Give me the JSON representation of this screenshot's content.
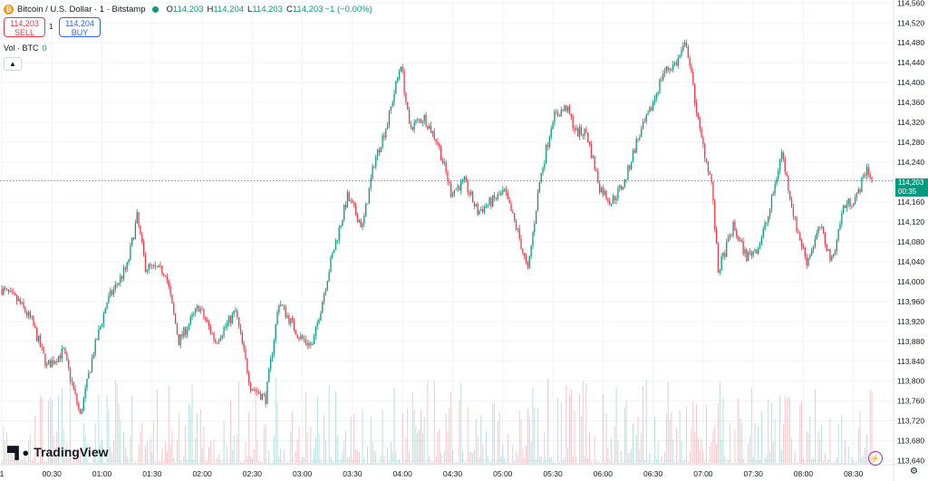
{
  "header": {
    "symbol": "Bitcoin / U.S. Dollar · 1 · Bitstamp",
    "coin_icon": "₿",
    "ohlc": {
      "o_label": "O",
      "o": "114,203",
      "h_label": "H",
      "h": "114,204",
      "l_label": "L",
      "l": "114,203",
      "c_label": "C",
      "c": "114,203",
      "change": "−1 (−0.00%)"
    }
  },
  "trade": {
    "sell_price": "114,203",
    "sell_label": "SELL",
    "spread": "1",
    "buy_price": "114,204",
    "buy_label": "BUY"
  },
  "volume_legend": {
    "label": "Vol · BTC",
    "value": "0"
  },
  "collapse_icon": "chevron-up-icon",
  "last_price": {
    "value": "114,203",
    "countdown": "00:35"
  },
  "branding": {
    "name": "TradingView"
  },
  "colors": {
    "up": "#089981",
    "down": "#f23645",
    "grid": "#f0f3fa"
  },
  "chart_data": {
    "type": "candlestick",
    "y_ticks": [
      "113,640",
      "113,680",
      "113,720",
      "113,760",
      "113,800",
      "113,840",
      "113,880",
      "113,920",
      "113,960",
      "114,000",
      "114,040",
      "114,080",
      "114,120",
      "114,160",
      "114,200",
      "114,240",
      "114,280",
      "114,320",
      "114,360",
      "114,400",
      "114,440",
      "114,480",
      "114,520",
      "114,560"
    ],
    "ylim": [
      113632,
      114566
    ],
    "x_ticks": [
      "1",
      "00:30",
      "01:00",
      "01:30",
      "02:00",
      "02:30",
      "03:00",
      "03:30",
      "04:00",
      "04:30",
      "05:00",
      "05:30",
      "06:00",
      "06:30",
      "07:00",
      "07:30",
      "08:00",
      "08:30"
    ],
    "x_tick_minutes": [
      0,
      30,
      60,
      90,
      120,
      150,
      180,
      210,
      240,
      270,
      300,
      330,
      360,
      390,
      420,
      450,
      480,
      510
    ],
    "minute_range": [
      0,
      521
    ],
    "anchors": [
      [
        0,
        113985
      ],
      [
        10,
        113960
      ],
      [
        18,
        113920
      ],
      [
        27,
        113830
      ],
      [
        37,
        113860
      ],
      [
        47,
        113730
      ],
      [
        55,
        113860
      ],
      [
        63,
        113960
      ],
      [
        75,
        114030
      ],
      [
        81,
        114130
      ],
      [
        86,
        114030
      ],
      [
        98,
        114020
      ],
      [
        106,
        113880
      ],
      [
        118,
        113950
      ],
      [
        128,
        113880
      ],
      [
        140,
        113940
      ],
      [
        149,
        113790
      ],
      [
        158,
        113765
      ],
      [
        166,
        113960
      ],
      [
        178,
        113890
      ],
      [
        186,
        113870
      ],
      [
        197,
        114040
      ],
      [
        207,
        114170
      ],
      [
        216,
        114110
      ],
      [
        223,
        114240
      ],
      [
        231,
        114320
      ],
      [
        239,
        114440
      ],
      [
        244,
        114310
      ],
      [
        253,
        114330
      ],
      [
        261,
        114280
      ],
      [
        269,
        114180
      ],
      [
        277,
        114200
      ],
      [
        285,
        114140
      ],
      [
        293,
        114160
      ],
      [
        301,
        114180
      ],
      [
        309,
        114100
      ],
      [
        315,
        114020
      ],
      [
        322,
        114200
      ],
      [
        330,
        114330
      ],
      [
        338,
        114350
      ],
      [
        344,
        114300
      ],
      [
        350,
        114300
      ],
      [
        358,
        114190
      ],
      [
        365,
        114160
      ],
      [
        373,
        114200
      ],
      [
        380,
        114280
      ],
      [
        388,
        114340
      ],
      [
        396,
        114420
      ],
      [
        404,
        114440
      ],
      [
        410,
        114480
      ],
      [
        418,
        114300
      ],
      [
        425,
        114200
      ],
      [
        429,
        114020
      ],
      [
        438,
        114110
      ],
      [
        446,
        114050
      ],
      [
        453,
        114070
      ],
      [
        459,
        114130
      ],
      [
        467,
        114260
      ],
      [
        475,
        114120
      ],
      [
        482,
        114040
      ],
      [
        490,
        114110
      ],
      [
        497,
        114040
      ],
      [
        504,
        114150
      ],
      [
        512,
        114170
      ],
      [
        518,
        114230
      ],
      [
        521,
        114203
      ]
    ],
    "volume_max": 0.035,
    "volume_scale_note": ""
  }
}
